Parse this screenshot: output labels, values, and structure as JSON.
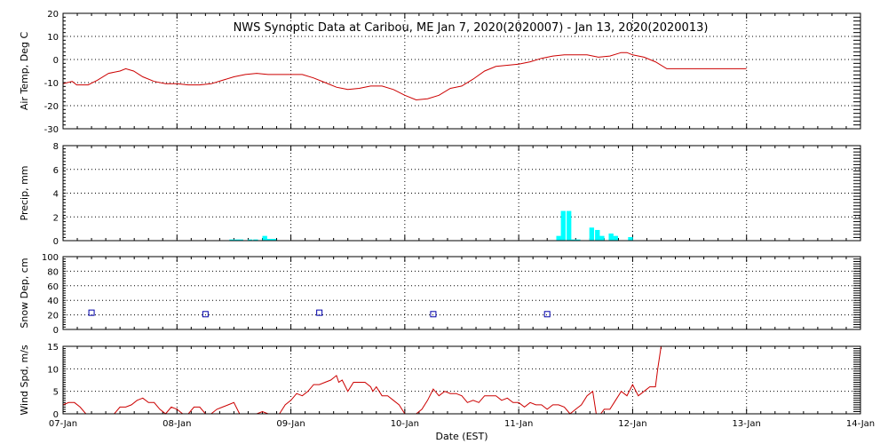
{
  "chart_data": {
    "type": "multi-panel",
    "title": "NWS Synoptic Data at Caribou, ME   Jan  7, 2020(2020007) - Jan 13, 2020(2020013)",
    "xlabel": "Date (EST)",
    "x_ticks": [
      "07-Jan",
      "08-Jan",
      "09-Jan",
      "10-Jan",
      "11-Jan",
      "12-Jan",
      "13-Jan",
      "14-Jan"
    ],
    "x_range_days": [
      0,
      7
    ],
    "grid": true,
    "panels": [
      {
        "type": "line",
        "ylabel": "Air Temp, Deg C",
        "ylim": [
          -30,
          20
        ],
        "yticks": [
          20,
          10,
          0,
          -10,
          -20,
          -30
        ],
        "color": "#cc0000",
        "points": [
          [
            0.0,
            -10.5
          ],
          [
            0.08,
            -9.5
          ],
          [
            0.12,
            -11
          ],
          [
            0.22,
            -11
          ],
          [
            0.3,
            -9
          ],
          [
            0.4,
            -6
          ],
          [
            0.5,
            -5
          ],
          [
            0.55,
            -4
          ],
          [
            0.62,
            -5
          ],
          [
            0.7,
            -7.5
          ],
          [
            0.8,
            -9.5
          ],
          [
            0.9,
            -10.5
          ],
          [
            1.0,
            -10.5
          ],
          [
            1.1,
            -11
          ],
          [
            1.2,
            -11
          ],
          [
            1.3,
            -10.5
          ],
          [
            1.4,
            -9
          ],
          [
            1.5,
            -7.5
          ],
          [
            1.6,
            -6.5
          ],
          [
            1.7,
            -6
          ],
          [
            1.8,
            -6.5
          ],
          [
            1.9,
            -6.5
          ],
          [
            2.0,
            -6.5
          ],
          [
            2.1,
            -6.5
          ],
          [
            2.2,
            -8
          ],
          [
            2.3,
            -10
          ],
          [
            2.4,
            -12
          ],
          [
            2.5,
            -13
          ],
          [
            2.6,
            -12.5
          ],
          [
            2.7,
            -11.5
          ],
          [
            2.8,
            -11.5
          ],
          [
            2.9,
            -13
          ],
          [
            3.0,
            -15.5
          ],
          [
            3.1,
            -17.5
          ],
          [
            3.2,
            -17
          ],
          [
            3.3,
            -15.5
          ],
          [
            3.4,
            -12.5
          ],
          [
            3.5,
            -11.5
          ],
          [
            3.6,
            -8.5
          ],
          [
            3.7,
            -5
          ],
          [
            3.8,
            -3
          ],
          [
            3.9,
            -2.5
          ],
          [
            4.0,
            -2
          ],
          [
            4.1,
            -1
          ],
          [
            4.2,
            0.5
          ],
          [
            4.3,
            1.5
          ],
          [
            4.4,
            2
          ],
          [
            4.5,
            2
          ],
          [
            4.6,
            2
          ],
          [
            4.7,
            1
          ],
          [
            4.8,
            1.5
          ],
          [
            4.9,
            3
          ],
          [
            4.95,
            3
          ],
          [
            5.0,
            2
          ],
          [
            5.1,
            1
          ],
          [
            5.2,
            -1
          ],
          [
            5.3,
            -4
          ],
          [
            6.0,
            -4
          ],
          [
            5.95,
            -4
          ]
        ]
      },
      {
        "type": "bar",
        "ylabel": "Precip, mm",
        "ylim": [
          0,
          8
        ],
        "yticks": [
          8,
          6,
          4,
          2,
          0
        ],
        "color": "#00ffff",
        "bar_width_days": 0.0417,
        "bars": [
          [
            1.46,
            0.1
          ],
          [
            1.5,
            0.1
          ],
          [
            1.54,
            0.1
          ],
          [
            1.62,
            0.1
          ],
          [
            1.67,
            0.1
          ],
          [
            1.75,
            0.4
          ],
          [
            1.79,
            0.15
          ],
          [
            1.83,
            0.15
          ],
          [
            4.33,
            0.4
          ],
          [
            4.37,
            2.5
          ],
          [
            4.42,
            2.5
          ],
          [
            4.46,
            0.1
          ],
          [
            4.5,
            0.1
          ],
          [
            4.62,
            1.1
          ],
          [
            4.67,
            0.9
          ],
          [
            4.71,
            0.4
          ],
          [
            4.79,
            0.6
          ],
          [
            4.83,
            0.4
          ],
          [
            4.96,
            0.3
          ]
        ]
      },
      {
        "type": "scatter",
        "ylabel": "Snow Dep, cm",
        "ylim": [
          0,
          100
        ],
        "yticks": [
          100,
          80,
          60,
          40,
          20,
          0
        ],
        "color": "#0000aa",
        "points": [
          [
            0.25,
            23
          ],
          [
            1.25,
            21
          ],
          [
            2.25,
            23
          ],
          [
            3.25,
            21
          ],
          [
            4.25,
            21
          ]
        ]
      },
      {
        "type": "line",
        "ylabel": "Wind Spd, m/s",
        "ylim": [
          0,
          15
        ],
        "yticks": [
          15,
          10,
          5,
          0
        ],
        "color": "#cc0000",
        "points": [
          [
            0.0,
            2
          ],
          [
            0.05,
            2.5
          ],
          [
            0.1,
            2.5
          ],
          [
            0.15,
            1.5
          ],
          [
            0.2,
            0
          ],
          [
            0.45,
            0
          ],
          [
            0.5,
            1.5
          ],
          [
            0.55,
            1.5
          ],
          [
            0.6,
            2
          ],
          [
            0.65,
            3
          ],
          [
            0.7,
            3.5
          ],
          [
            0.75,
            2.5
          ],
          [
            0.8,
            2.5
          ],
          [
            0.85,
            1
          ],
          [
            0.9,
            0
          ],
          [
            0.95,
            1.5
          ],
          [
            1.0,
            1
          ],
          [
            1.05,
            0
          ],
          [
            1.1,
            0
          ],
          [
            1.15,
            1.5
          ],
          [
            1.2,
            1.5
          ],
          [
            1.25,
            0
          ],
          [
            1.3,
            0
          ],
          [
            1.35,
            1
          ],
          [
            1.4,
            1.5
          ],
          [
            1.45,
            2
          ],
          [
            1.5,
            2.5
          ],
          [
            1.55,
            0
          ],
          [
            1.7,
            0
          ],
          [
            1.75,
            0.5
          ],
          [
            1.8,
            0
          ],
          [
            1.9,
            0
          ],
          [
            1.95,
            2
          ],
          [
            2.0,
            3
          ],
          [
            2.05,
            4.5
          ],
          [
            2.1,
            4
          ],
          [
            2.15,
            5
          ],
          [
            2.2,
            6.5
          ],
          [
            2.25,
            6.5
          ],
          [
            2.3,
            7
          ],
          [
            2.35,
            7.5
          ],
          [
            2.4,
            8.5
          ],
          [
            2.42,
            7
          ],
          [
            2.45,
            7.5
          ],
          [
            2.5,
            5
          ],
          [
            2.55,
            7
          ],
          [
            2.6,
            7
          ],
          [
            2.65,
            7
          ],
          [
            2.7,
            6
          ],
          [
            2.72,
            5
          ],
          [
            2.75,
            6
          ],
          [
            2.8,
            4
          ],
          [
            2.85,
            4
          ],
          [
            2.9,
            3
          ],
          [
            2.95,
            2
          ],
          [
            3.0,
            0
          ],
          [
            3.1,
            0
          ],
          [
            3.15,
            1
          ],
          [
            3.2,
            3
          ],
          [
            3.25,
            5.5
          ],
          [
            3.3,
            4
          ],
          [
            3.35,
            5
          ],
          [
            3.4,
            4.5
          ],
          [
            3.45,
            4.5
          ],
          [
            3.5,
            4
          ],
          [
            3.55,
            2.5
          ],
          [
            3.6,
            3
          ],
          [
            3.65,
            2.5
          ],
          [
            3.7,
            4
          ],
          [
            3.75,
            4
          ],
          [
            3.8,
            4
          ],
          [
            3.85,
            3
          ],
          [
            3.9,
            3.5
          ],
          [
            3.95,
            2.5
          ],
          [
            4.0,
            2.5
          ],
          [
            4.05,
            1.5
          ],
          [
            4.1,
            2.5
          ],
          [
            4.15,
            2
          ],
          [
            4.2,
            2
          ],
          [
            4.25,
            1
          ],
          [
            4.3,
            2
          ],
          [
            4.35,
            2
          ],
          [
            4.4,
            1.5
          ],
          [
            4.45,
            0
          ],
          [
            4.5,
            1
          ],
          [
            4.55,
            2
          ],
          [
            4.6,
            4
          ],
          [
            4.65,
            5
          ],
          [
            4.68,
            0
          ],
          [
            4.72,
            0
          ],
          [
            4.75,
            1
          ],
          [
            4.8,
            1
          ],
          [
            4.85,
            3
          ],
          [
            4.9,
            5
          ],
          [
            4.95,
            4
          ],
          [
            5.0,
            6.5
          ],
          [
            5.05,
            4
          ],
          [
            5.1,
            5
          ],
          [
            5.15,
            6
          ],
          [
            5.2,
            6
          ],
          [
            5.22,
            10
          ],
          [
            5.25,
            15
          ]
        ]
      }
    ]
  }
}
